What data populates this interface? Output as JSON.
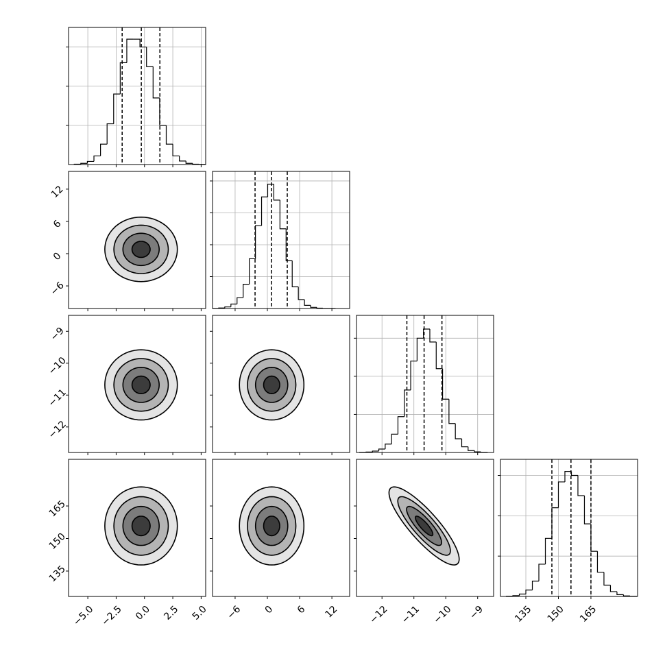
{
  "chart_data": {
    "type": "corner",
    "levels": [
      0.5,
      1,
      1.5,
      2
    ],
    "params": [
      {
        "xlim": [
          -6.7,
          5.4
        ],
        "xticks": [
          {
            "value": -5,
            "label": "−5.0"
          },
          {
            "value": -2.5,
            "label": "−2.5"
          },
          {
            "value": 0,
            "label": "0.0"
          },
          {
            "value": 2.5,
            "label": "2.5"
          },
          {
            "value": 5,
            "label": "5.0"
          }
        ],
        "quantiles": [
          -1.97,
          -0.28,
          1.36
        ],
        "bins": [
          -6.2,
          -5.62,
          -5.04,
          -4.46,
          -3.88,
          -3.3,
          -2.72,
          -2.14,
          -1.56,
          -0.98,
          -0.4,
          0.18,
          0.76,
          1.34,
          1.92,
          2.5,
          3.08,
          3.66,
          4.24,
          4.82,
          5.4
        ],
        "counts": [
          5,
          15,
          40,
          110,
          260,
          520,
          900,
          1300,
          1600,
          1600,
          1500,
          1250,
          850,
          500,
          260,
          110,
          45,
          15,
          5,
          2
        ],
        "ylim": [
          0,
          1750
        ],
        "yticks": [
          500,
          1000,
          1500
        ]
      },
      {
        "xlim": [
          -10.2,
          15.3
        ],
        "xticks": [
          {
            "value": -6,
            "label": "−6"
          },
          0,
          6,
          12
        ],
        "quantiles": [
          -2.29,
          0.77,
          3.7
        ],
        "bins": [
          -10.2,
          -9.06,
          -7.92,
          -6.78,
          -5.64,
          -4.5,
          -3.36,
          -2.22,
          -1.08,
          0.06,
          1.2,
          2.34,
          3.48,
          4.62,
          5.76,
          6.9,
          8.04,
          9.18,
          10.32,
          11.46,
          12.6
        ],
        "counts": [
          2,
          8,
          25,
          70,
          170,
          380,
          780,
          1300,
          1750,
          1950,
          1700,
          1250,
          750,
          340,
          140,
          50,
          18,
          6,
          2,
          1
        ],
        "ylim": [
          0,
          2150
        ],
        "yticks": [
          500,
          1000,
          1500,
          2000
        ]
      },
      {
        "xlim": [
          -12.8,
          -8.5
        ],
        "xticks": [
          {
            "value": -12,
            "label": "−12"
          },
          {
            "value": -11,
            "label": "−11"
          },
          {
            "value": -10,
            "label": "−10"
          },
          {
            "value": -9,
            "label": "−9"
          }
        ],
        "quantiles": [
          -11.22,
          -10.68,
          -10.12
        ],
        "bins": [
          -12.7,
          -12.5,
          -12.3,
          -12.1,
          -11.9,
          -11.7,
          -11.5,
          -11.3,
          -11.1,
          -10.9,
          -10.7,
          -10.5,
          -10.3,
          -10.1,
          -9.9,
          -9.7,
          -9.5,
          -9.3,
          -9.1,
          -8.9,
          -8.7
        ],
        "counts": [
          2,
          6,
          18,
          45,
          110,
          240,
          470,
          820,
          1200,
          1500,
          1620,
          1450,
          1100,
          700,
          380,
          180,
          75,
          25,
          8,
          3
        ],
        "ylim": [
          0,
          1800
        ],
        "yticks": [
          500,
          1000,
          1500
        ]
      },
      {
        "xlim": [
          123.3,
          186.5
        ],
        "xticks": [
          135,
          150,
          165
        ],
        "quantiles": [
          147.0,
          155.8,
          165.0
        ],
        "bins": [
          126,
          129,
          132,
          135,
          138,
          141,
          144,
          147,
          150,
          153,
          156,
          159,
          162,
          165,
          168,
          171,
          174,
          177,
          180,
          183,
          186
        ],
        "counts": [
          3,
          10,
          30,
          80,
          190,
          400,
          720,
          1100,
          1420,
          1550,
          1500,
          1250,
          900,
          560,
          300,
          140,
          60,
          22,
          7,
          2
        ],
        "ylim": [
          0,
          1700
        ],
        "yticks": [
          500,
          1000,
          1500
        ]
      }
    ],
    "pairs": [
      {
        "center": [
          -0.3,
          0.8
        ],
        "sigma": [
          1.6,
          3.0
        ],
        "corr": 0
      },
      {
        "center": [
          -0.3,
          -10.68
        ],
        "sigma": [
          1.6,
          0.55
        ],
        "corr": 0
      },
      {
        "center": [
          0.8,
          -10.68
        ],
        "sigma": [
          3.0,
          0.55
        ],
        "corr": 0
      },
      {
        "center": [
          -0.3,
          155.8
        ],
        "sigma": [
          1.6,
          9
        ],
        "corr": 0
      },
      {
        "center": [
          0.8,
          155.8
        ],
        "sigma": [
          3.0,
          9
        ],
        "corr": 0
      },
      {
        "center": [
          -10.68,
          155.8
        ],
        "sigma": [
          0.55,
          9
        ],
        "corr": -0.85
      }
    ]
  }
}
